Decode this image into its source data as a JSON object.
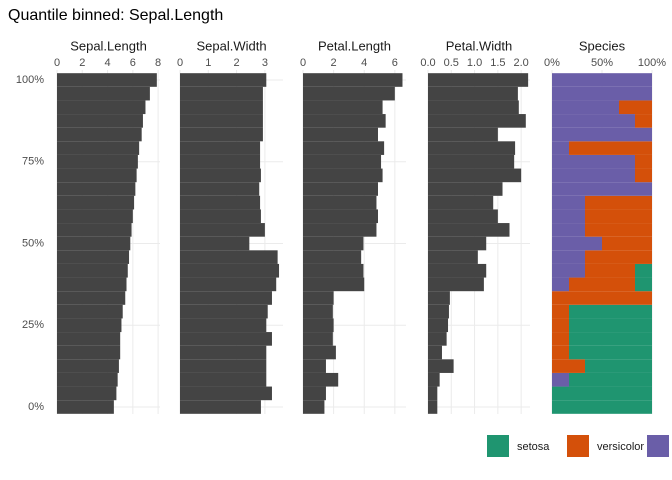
{
  "title": "Quantile binned: Sepal.Length",
  "chart_data": [
    {
      "type": "hbar",
      "title": "Sepal.Length",
      "color": "#444444",
      "yticks": [
        {
          "value": 0,
          "label": "0%"
        },
        {
          "value": 25,
          "label": "25%"
        },
        {
          "value": 50,
          "label": "50%"
        },
        {
          "value": 75,
          "label": "75%"
        },
        {
          "value": 100,
          "label": "100%"
        }
      ],
      "xlim": [
        0,
        8.15
      ],
      "xticks": [
        0,
        2,
        4,
        6,
        8
      ],
      "values": [
        4.5,
        4.7,
        4.8,
        4.9,
        5.0,
        5.0,
        5.1,
        5.2,
        5.4,
        5.5,
        5.6,
        5.7,
        5.8,
        5.9,
        6.0,
        6.1,
        6.2,
        6.3,
        6.4,
        6.5,
        6.7,
        6.8,
        7.0,
        7.35,
        7.9
      ]
    },
    {
      "type": "hbar",
      "title": "Sepal.Width",
      "color": "#444444",
      "xlim": [
        0,
        3.64
      ],
      "xticks": [
        0,
        1,
        2,
        3
      ],
      "values": [
        2.86,
        3.25,
        3.05,
        3.05,
        3.05,
        3.25,
        3.05,
        3.1,
        3.25,
        3.4,
        3.5,
        3.45,
        2.45,
        3.0,
        2.86,
        2.83,
        2.8,
        2.86,
        2.83,
        2.83,
        2.93,
        2.93,
        2.93,
        2.93,
        3.05
      ]
    },
    {
      "type": "hbar",
      "title": "Petal.Length",
      "color": "#444444",
      "xlim": [
        0,
        6.73
      ],
      "xticks": [
        0,
        2,
        4,
        6
      ],
      "values": [
        1.4,
        1.5,
        2.3,
        1.5,
        2.15,
        1.95,
        2.0,
        1.95,
        2.0,
        4.0,
        3.95,
        3.8,
        3.95,
        4.8,
        4.9,
        4.8,
        4.9,
        5.2,
        5.1,
        5.3,
        4.9,
        5.4,
        5.2,
        6.0,
        6.5
      ]
    },
    {
      "type": "hbar",
      "title": "Petal.Width",
      "color": "#444444",
      "xlim": [
        0,
        2.19
      ],
      "xticks": [
        {
          "value": 0,
          "label": "0.0"
        },
        0.5,
        {
          "value": 1,
          "label": "1.0"
        },
        1.5,
        {
          "value": 2,
          "label": "2.0"
        }
      ],
      "values": [
        0.2,
        0.2,
        0.25,
        0.55,
        0.3,
        0.4,
        0.43,
        0.45,
        0.47,
        1.2,
        1.25,
        1.07,
        1.25,
        1.75,
        1.5,
        1.4,
        1.6,
        2.0,
        1.85,
        1.87,
        1.5,
        2.1,
        1.95,
        1.93,
        2.15
      ]
    },
    {
      "type": "stacked_hbar",
      "title": "Species",
      "xlim": [
        0,
        100
      ],
      "xticks": [
        {
          "value": 0,
          "label": "0%"
        },
        {
          "value": 50,
          "label": "50%"
        },
        {
          "value": 100,
          "label": "100%"
        }
      ],
      "series": [
        {
          "color": "#6a5ea8",
          "values": [
            0,
            0,
            17,
            0,
            0,
            0,
            0,
            0,
            0,
            17,
            33,
            33,
            50,
            33,
            33,
            33,
            100,
            83,
            83,
            17,
            100,
            83,
            67,
            100,
            100
          ]
        },
        {
          "name": "versicolor",
          "color": "#d4500a",
          "values": [
            0,
            0,
            0,
            33,
            17,
            17,
            17,
            17,
            100,
            66,
            50,
            67,
            50,
            67,
            67,
            67,
            0,
            17,
            17,
            83,
            0,
            17,
            33,
            0,
            0
          ]
        },
        {
          "name": "setosa",
          "color": "#1f9570",
          "values": [
            100,
            100,
            83,
            67,
            83,
            83,
            83,
            83,
            0,
            17,
            17,
            0,
            0,
            0,
            0,
            0,
            0,
            0,
            0,
            0,
            0,
            0,
            0,
            0,
            0
          ]
        }
      ]
    }
  ]
}
